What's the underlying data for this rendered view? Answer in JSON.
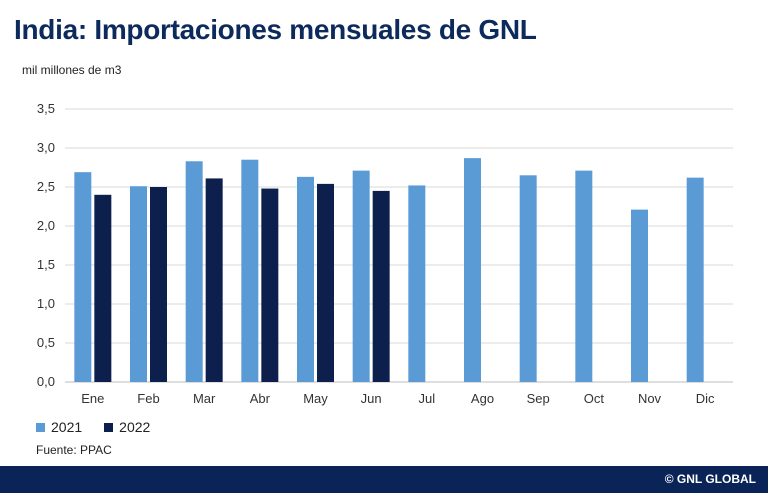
{
  "header": {
    "title": "India: Importaciones mensuales de GNL",
    "unit": "mil millones de m3"
  },
  "footer": {
    "source": "Fuente: PPAC",
    "copyright": "© GNL GLOBAL"
  },
  "colors": {
    "series_2021": "#5b9bd5",
    "series_2022": "#0d1f4d",
    "footer_bar": "#0b2457",
    "title": "#0d2a5c"
  },
  "chart_data": {
    "type": "bar",
    "categories": [
      "Ene",
      "Feb",
      "Mar",
      "Abr",
      "May",
      "Jun",
      "Jul",
      "Ago",
      "Sep",
      "Oct",
      "Nov",
      "Dic"
    ],
    "series": [
      {
        "name": "2021",
        "values": [
          2.69,
          2.51,
          2.83,
          2.85,
          2.63,
          2.71,
          2.52,
          2.87,
          2.65,
          2.71,
          2.21,
          2.62
        ]
      },
      {
        "name": "2022",
        "values": [
          2.4,
          2.5,
          2.61,
          2.48,
          2.54,
          2.45,
          null,
          null,
          null,
          null,
          null,
          null
        ]
      }
    ],
    "yticks": [
      "0,0",
      "0,5",
      "1,0",
      "1,5",
      "2,0",
      "2,5",
      "3,0",
      "3,5"
    ],
    "ylim": [
      0,
      3.5
    ],
    "grid": true,
    "legend_position": "bottom-left"
  }
}
